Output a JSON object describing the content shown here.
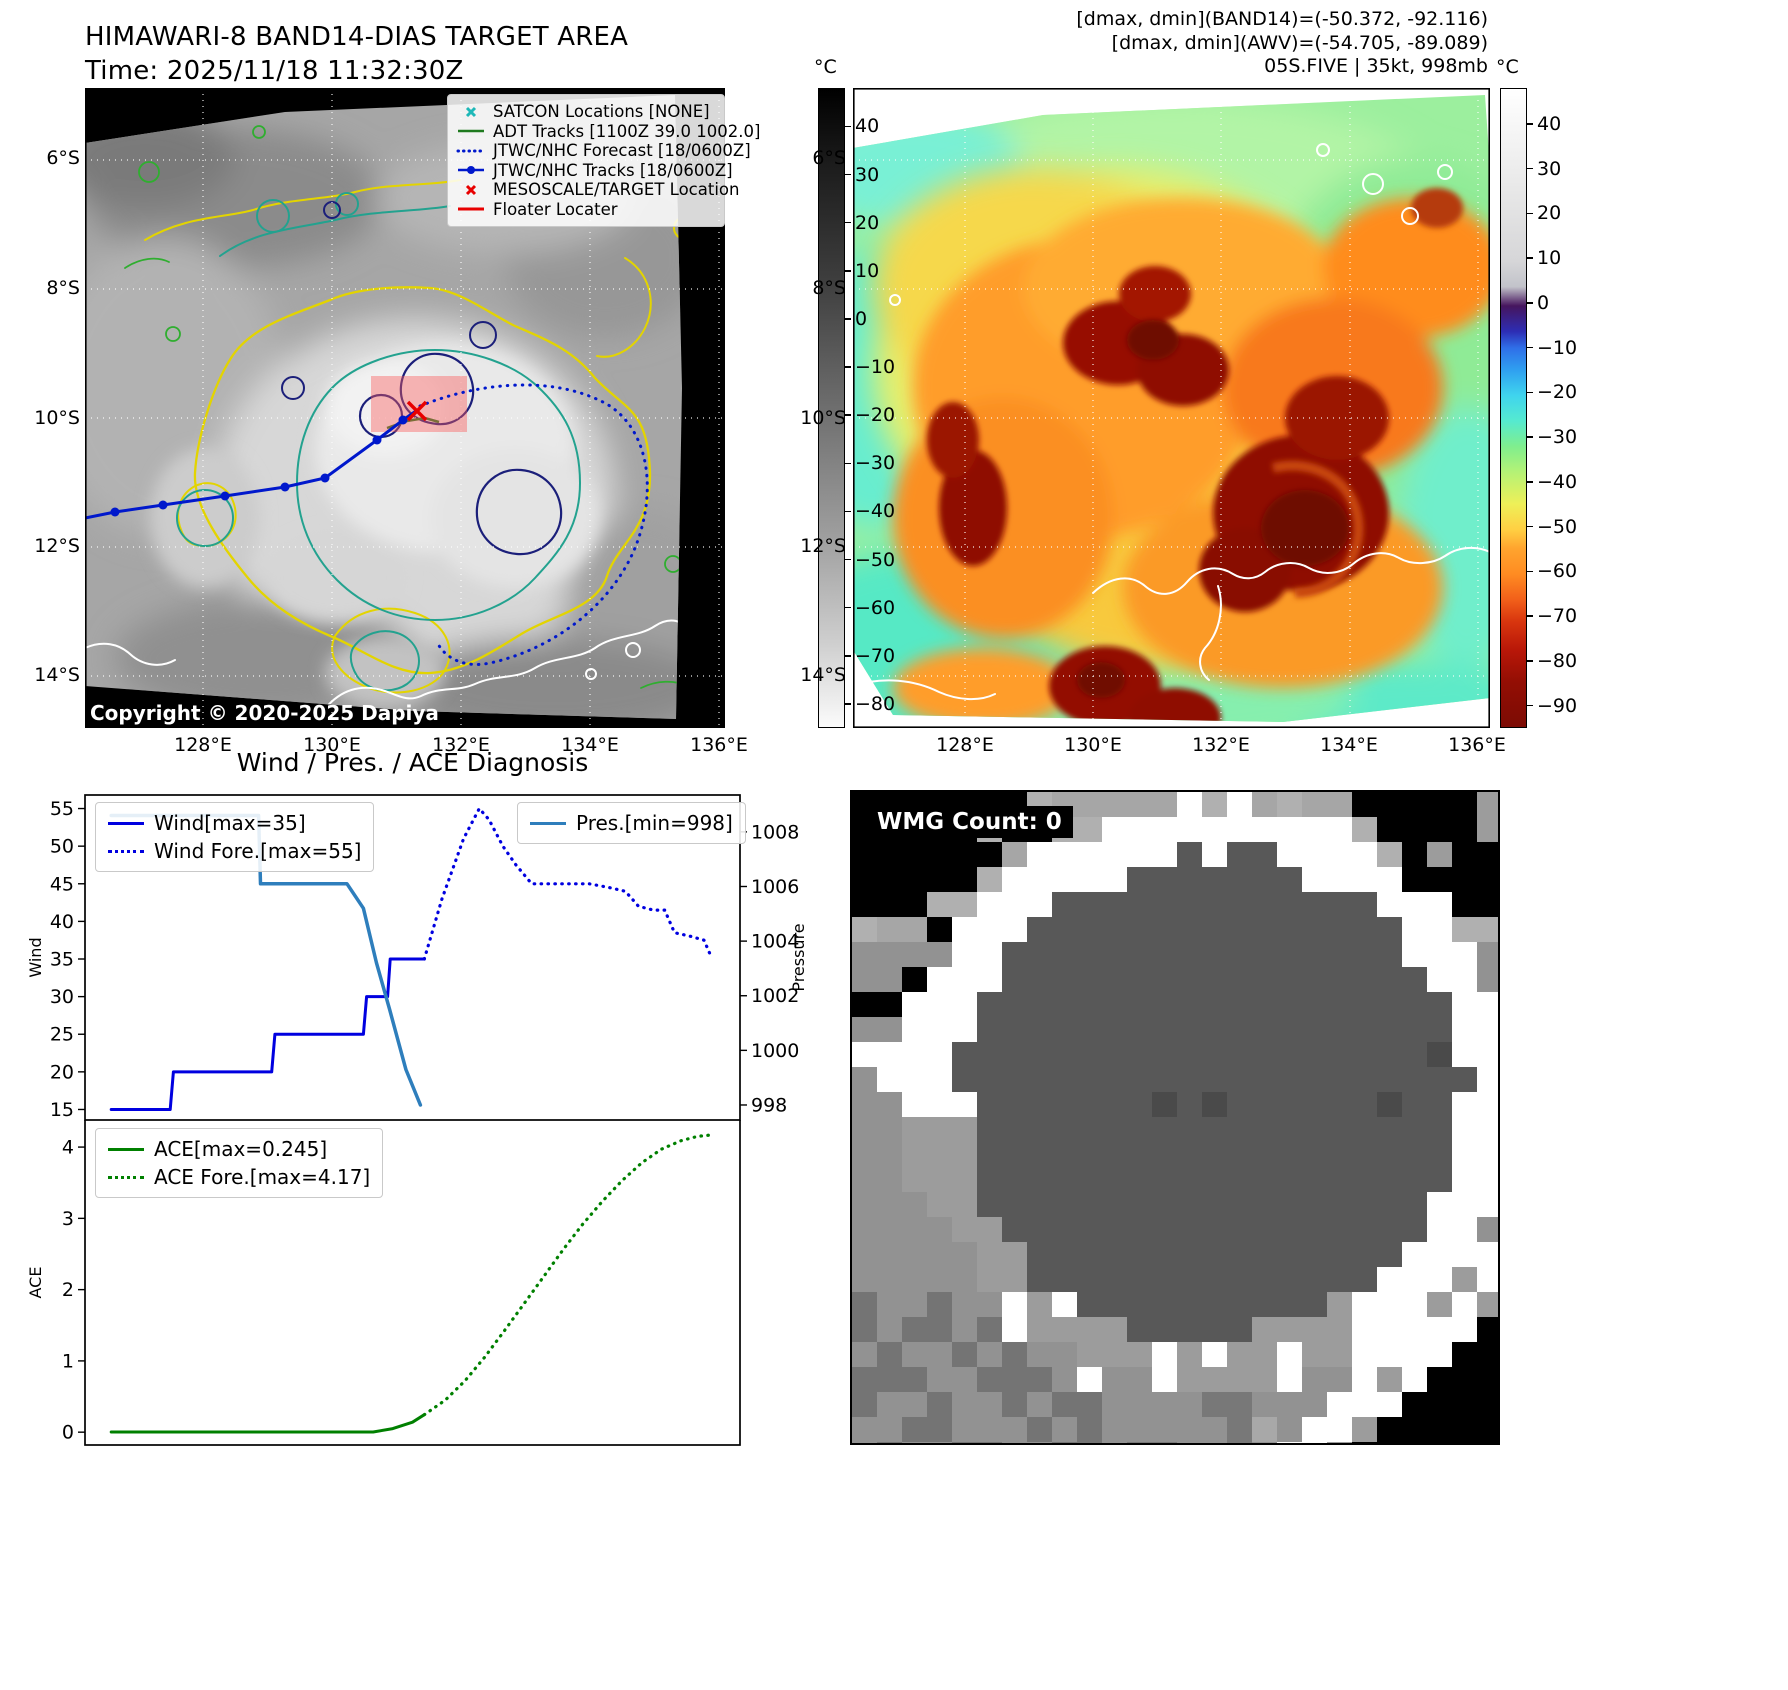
{
  "header": {
    "title_line1": "HIMAWARI-8 BAND14-DIAS TARGET AREA",
    "title_line2": "Time: 2025/11/18 11:32:30Z",
    "dmax_dmin_band14": "[dmax, dmin](BAND14)=(-50.372, -92.116)",
    "dmax_dmin_awv": "[dmax, dmin](AWV)=(-54.705, -89.089)",
    "storm_info": "05S.FIVE | 35kt, 998mb"
  },
  "band14_map": {
    "legend_items": [
      {
        "label": "SATCON Locations [NONE]",
        "marker": "cyan-x"
      },
      {
        "label": "ADT Tracks [1100Z 39.0 1002.0]",
        "marker": "green-line"
      },
      {
        "label": "JTWC/NHC Forecast [18/0600Z]",
        "marker": "blue-dotted-line"
      },
      {
        "label": "JTWC/NHC Tracks [18/0600Z]",
        "marker": "blue-line-marker"
      },
      {
        "label": "MESOSCALE/TARGET Location",
        "marker": "red-x"
      },
      {
        "label": "Floater Locater",
        "marker": "red-line"
      }
    ],
    "copyright": "Copyright © 2020-2025 Dapiya",
    "lat_ticks": [
      "6°S",
      "8°S",
      "10°S",
      "12°S",
      "14°S"
    ],
    "lon_ticks": [
      "128°E",
      "130°E",
      "132°E",
      "134°E",
      "136°E"
    ],
    "colorbar_unit": "°C",
    "colorbar_ticks": [
      40,
      30,
      20,
      10,
      0,
      -10,
      -20,
      -30,
      -40,
      -50,
      -60,
      -70,
      -80
    ]
  },
  "awv_map": {
    "lat_ticks": [
      "6°S",
      "8°S",
      "10°S",
      "12°S",
      "14°S"
    ],
    "lon_ticks": [
      "128°E",
      "130°E",
      "132°E",
      "134°E",
      "136°E"
    ],
    "colorbar_unit": "°C",
    "colorbar_ticks": [
      40,
      30,
      20,
      10,
      0,
      -10,
      -20,
      -30,
      -40,
      -50,
      -60,
      -70,
      -80,
      -90
    ]
  },
  "wmg": {
    "label": "WMG Count: 0"
  },
  "chart_data": [
    {
      "type": "line",
      "title": "Wind / Pres. / ACE Diagnosis",
      "xlim": [
        0,
        1
      ],
      "axes": {
        "left": {
          "label": "Wind",
          "lim": [
            13.6,
            56.8
          ],
          "ticks": [
            15,
            20,
            25,
            30,
            35,
            40,
            45,
            50,
            55
          ]
        },
        "right": {
          "label": "Pressure",
          "lim": [
            997.45,
            1009.35
          ],
          "ticks": [
            998,
            1000,
            1002,
            1004,
            1006,
            1008
          ]
        }
      },
      "series": [
        {
          "name": "Wind[max=35]",
          "axis": "left",
          "style": "solid",
          "color": "#0000e0",
          "width": 3,
          "x": [
            0.04,
            0.13,
            0.135,
            0.285,
            0.29,
            0.425,
            0.43,
            0.462,
            0.466,
            0.518
          ],
          "y": [
            15,
            15,
            20,
            20,
            25,
            25,
            30,
            30,
            35,
            35
          ]
        },
        {
          "name": "Wind Fore.[max=55]",
          "axis": "left",
          "style": "dotted",
          "color": "#0000e0",
          "width": 3.2,
          "x": [
            0.518,
            0.545,
            0.578,
            0.602,
            0.617,
            0.638,
            0.658,
            0.682,
            0.77,
            0.8,
            0.825,
            0.845,
            0.868,
            0.885,
            0.9,
            0.925,
            0.945,
            0.955
          ],
          "y": [
            35,
            43,
            51,
            55,
            53.5,
            50,
            47.5,
            45,
            45,
            44.5,
            44,
            42,
            41.5,
            41.5,
            38.5,
            38,
            37.5,
            35.5
          ]
        },
        {
          "name": "Pres.[min=998]",
          "axis": "right",
          "style": "solid",
          "color": "#2e7ebc",
          "width": 3.5,
          "x": [
            0.04,
            0.265,
            0.268,
            0.4,
            0.425,
            0.445,
            0.465,
            0.49,
            0.512
          ],
          "y": [
            1008.6,
            1008.6,
            1006.1,
            1006.1,
            1005.2,
            1003.2,
            1001.5,
            999.3,
            998.0
          ]
        }
      ]
    },
    {
      "type": "line",
      "xlim": [
        0,
        1
      ],
      "axes": {
        "left": {
          "label": "ACE",
          "lim": [
            -0.18,
            4.38
          ],
          "ticks": [
            0,
            1,
            2,
            3,
            4
          ]
        }
      },
      "series": [
        {
          "name": "ACE[max=0.245]",
          "axis": "left",
          "style": "solid",
          "color": "#008000",
          "width": 3,
          "x": [
            0.04,
            0.44,
            0.47,
            0.5,
            0.518
          ],
          "y": [
            0.002,
            0.002,
            0.05,
            0.14,
            0.245
          ]
        },
        {
          "name": "ACE Fore.[max=4.17]",
          "axis": "left",
          "style": "dotted",
          "color": "#008000",
          "width": 3.2,
          "x": [
            0.518,
            0.55,
            0.58,
            0.61,
            0.64,
            0.67,
            0.7,
            0.73,
            0.76,
            0.79,
            0.82,
            0.85,
            0.88,
            0.91,
            0.935,
            0.955
          ],
          "y": [
            0.245,
            0.45,
            0.72,
            1.05,
            1.42,
            1.8,
            2.18,
            2.56,
            2.92,
            3.24,
            3.53,
            3.78,
            3.97,
            4.09,
            4.15,
            4.17
          ]
        }
      ]
    }
  ]
}
